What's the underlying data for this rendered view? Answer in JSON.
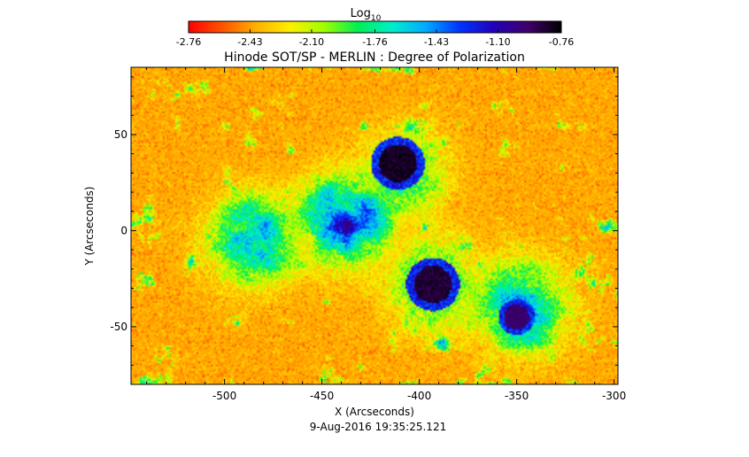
{
  "chart_data": {
    "type": "heatmap",
    "title": "Hinode SOT/SP - MERLIN : Degree of Polarization",
    "subtitle": "9-Aug-2016 19:35:25.121",
    "xlabel": "X (Arcseconds)",
    "ylabel": "Y (Arcseconds)",
    "xlim": [
      -548,
      -298
    ],
    "ylim": [
      -80,
      85
    ],
    "x_ticks": [
      -500,
      -450,
      -400,
      -350,
      -300
    ],
    "x_tick_labels": [
      "-500",
      "-450",
      "-400",
      "-350",
      "-300"
    ],
    "y_ticks": [
      50,
      0,
      -50
    ],
    "y_tick_labels": [
      "50",
      "0",
      "-50"
    ],
    "colorbar": {
      "label": "Log",
      "label_subscript": "10",
      "range": [
        -2.76,
        -0.76
      ],
      "ticks": [
        -2.76,
        -2.43,
        -2.1,
        -1.76,
        -1.43,
        -1.1,
        -0.76
      ],
      "tick_labels": [
        "-2.76",
        "-2.43",
        "-2.10",
        "-1.76",
        "-1.43",
        "-1.10",
        "-0.76"
      ],
      "colormap": [
        "#ff0000",
        "#ff5500",
        "#ffb000",
        "#ffee00",
        "#9fff00",
        "#00ee55",
        "#00eecc",
        "#00aaff",
        "#0033ff",
        "#2200bb",
        "#40006a",
        "#000000"
      ]
    },
    "background_value": -2.55,
    "features": [
      {
        "kind": "sunspot",
        "x": -411,
        "y": 35,
        "value": -0.82
      },
      {
        "kind": "sunspot",
        "x": -393,
        "y": -28,
        "value": -0.85
      },
      {
        "kind": "sunspot",
        "x": -350,
        "y": -45,
        "value": -0.95
      },
      {
        "kind": "plage",
        "x": -408,
        "y": 28,
        "value": -1.85
      },
      {
        "kind": "plage",
        "x": -393,
        "y": -28,
        "value": -1.75
      },
      {
        "kind": "plage",
        "x": -438,
        "y": 5,
        "value": -1.35
      },
      {
        "kind": "plage",
        "x": -485,
        "y": -5,
        "value": -1.55
      },
      {
        "kind": "plage",
        "x": -347,
        "y": -40,
        "value": -1.55
      }
    ]
  }
}
